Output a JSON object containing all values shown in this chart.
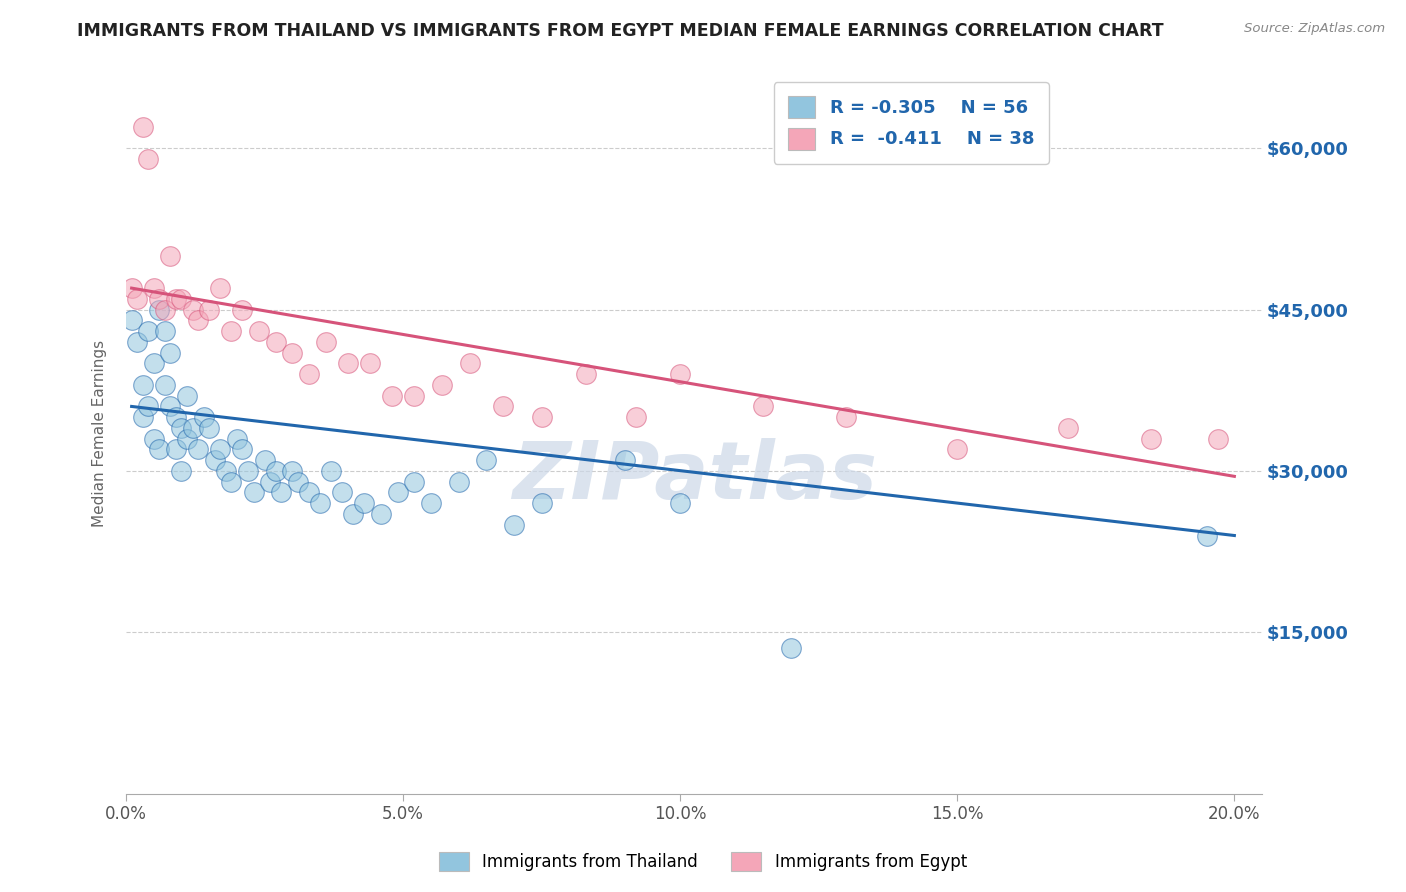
{
  "title": "IMMIGRANTS FROM THAILAND VS IMMIGRANTS FROM EGYPT MEDIAN FEMALE EARNINGS CORRELATION CHART",
  "source": "Source: ZipAtlas.com",
  "ylabel": "Median Female Earnings",
  "x_tick_labels": [
    "0.0%",
    "5.0%",
    "10.0%",
    "15.0%",
    "20.0%"
  ],
  "x_tick_positions": [
    0.0,
    0.05,
    0.1,
    0.15,
    0.2
  ],
  "y_tick_labels": [
    "$15,000",
    "$30,000",
    "$45,000",
    "$60,000"
  ],
  "y_tick_values": [
    15000,
    30000,
    45000,
    60000
  ],
  "xlim": [
    0.0,
    0.205
  ],
  "ylim": [
    0,
    67000
  ],
  "legend_label_1": "Immigrants from Thailand",
  "legend_label_2": "Immigrants from Egypt",
  "R1": "-0.305",
  "N1": "56",
  "R2": "-0.411",
  "N2": "38",
  "color_blue": "#92c5de",
  "color_pink": "#f4a6b8",
  "color_blue_line": "#2166ac",
  "color_pink_line": "#d6537a",
  "color_rhs_label": "#2166ac",
  "color_title": "#222222",
  "background_color": "#ffffff",
  "watermark": "ZIPatlas",
  "watermark_color": "#ccd8e8",
  "thailand_x": [
    0.001,
    0.002,
    0.003,
    0.003,
    0.004,
    0.004,
    0.005,
    0.005,
    0.006,
    0.006,
    0.007,
    0.007,
    0.008,
    0.008,
    0.009,
    0.009,
    0.01,
    0.01,
    0.011,
    0.011,
    0.012,
    0.013,
    0.014,
    0.015,
    0.016,
    0.017,
    0.018,
    0.019,
    0.02,
    0.021,
    0.022,
    0.023,
    0.025,
    0.026,
    0.027,
    0.028,
    0.03,
    0.031,
    0.033,
    0.035,
    0.037,
    0.039,
    0.041,
    0.043,
    0.046,
    0.049,
    0.052,
    0.055,
    0.06,
    0.065,
    0.07,
    0.075,
    0.09,
    0.1,
    0.12,
    0.195
  ],
  "thailand_y": [
    44000,
    42000,
    38000,
    35000,
    43000,
    36000,
    40000,
    33000,
    32000,
    45000,
    43000,
    38000,
    41000,
    36000,
    35000,
    32000,
    34000,
    30000,
    37000,
    33000,
    34000,
    32000,
    35000,
    34000,
    31000,
    32000,
    30000,
    29000,
    33000,
    32000,
    30000,
    28000,
    31000,
    29000,
    30000,
    28000,
    30000,
    29000,
    28000,
    27000,
    30000,
    28000,
    26000,
    27000,
    26000,
    28000,
    29000,
    27000,
    29000,
    31000,
    25000,
    27000,
    31000,
    27000,
    13500,
    24000
  ],
  "egypt_x": [
    0.001,
    0.002,
    0.003,
    0.004,
    0.005,
    0.006,
    0.007,
    0.008,
    0.009,
    0.01,
    0.012,
    0.013,
    0.015,
    0.017,
    0.019,
    0.021,
    0.024,
    0.027,
    0.03,
    0.033,
    0.036,
    0.04,
    0.044,
    0.048,
    0.052,
    0.057,
    0.062,
    0.068,
    0.075,
    0.083,
    0.092,
    0.1,
    0.115,
    0.13,
    0.15,
    0.17,
    0.185,
    0.197
  ],
  "egypt_y": [
    47000,
    46000,
    62000,
    59000,
    47000,
    46000,
    45000,
    50000,
    46000,
    46000,
    45000,
    44000,
    45000,
    47000,
    43000,
    45000,
    43000,
    42000,
    41000,
    39000,
    42000,
    40000,
    40000,
    37000,
    37000,
    38000,
    40000,
    36000,
    35000,
    39000,
    35000,
    39000,
    36000,
    35000,
    32000,
    34000,
    33000,
    33000
  ],
  "blue_line_x": [
    0.001,
    0.2
  ],
  "blue_line_y": [
    36000,
    24000
  ],
  "pink_line_x": [
    0.001,
    0.2
  ],
  "pink_line_y": [
    47000,
    29500
  ]
}
